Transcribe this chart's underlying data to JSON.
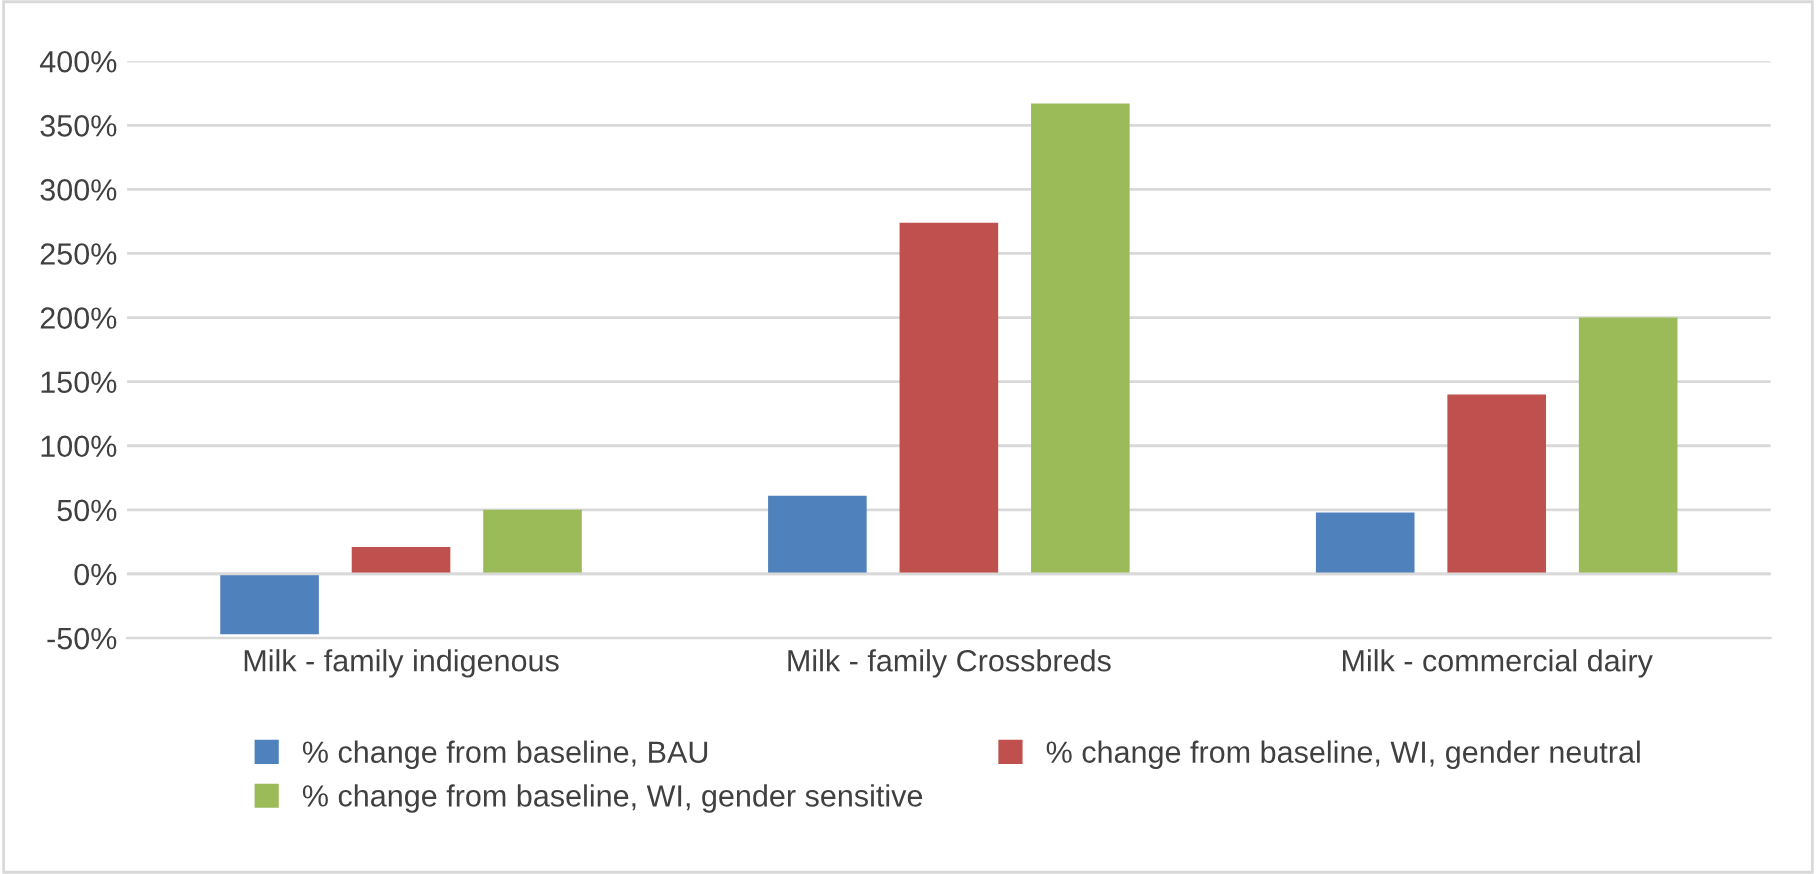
{
  "chart_data": {
    "type": "bar",
    "categories": [
      "Milk - family indigenous",
      "Milk - family Crossbreds",
      "Milk - commercial dairy"
    ],
    "series": [
      {
        "name": "% change from baseline, BAU",
        "color": "#4f81bd",
        "values": [
          -47,
          61,
          48
        ]
      },
      {
        "name": "% change from baseline, WI, gender neutral",
        "color": "#c0504d",
        "values": [
          21,
          274,
          140
        ]
      },
      {
        "name": "% change from baseline, WI, gender sensitive",
        "color": "#9bbb59",
        "values": [
          50,
          367,
          200
        ]
      }
    ],
    "ylim": [
      -50,
      400
    ],
    "yticks": [
      {
        "value": -50,
        "label": "-50%"
      },
      {
        "value": 0,
        "label": "0%"
      },
      {
        "value": 50,
        "label": "50%"
      },
      {
        "value": 100,
        "label": "100%"
      },
      {
        "value": 150,
        "label": "150%"
      },
      {
        "value": 200,
        "label": "200%"
      },
      {
        "value": 250,
        "label": "250%"
      },
      {
        "value": 300,
        "label": "300%"
      },
      {
        "value": 350,
        "label": "350%"
      },
      {
        "value": 400,
        "label": "400%"
      }
    ],
    "grid": "y",
    "legend": "bottom"
  }
}
